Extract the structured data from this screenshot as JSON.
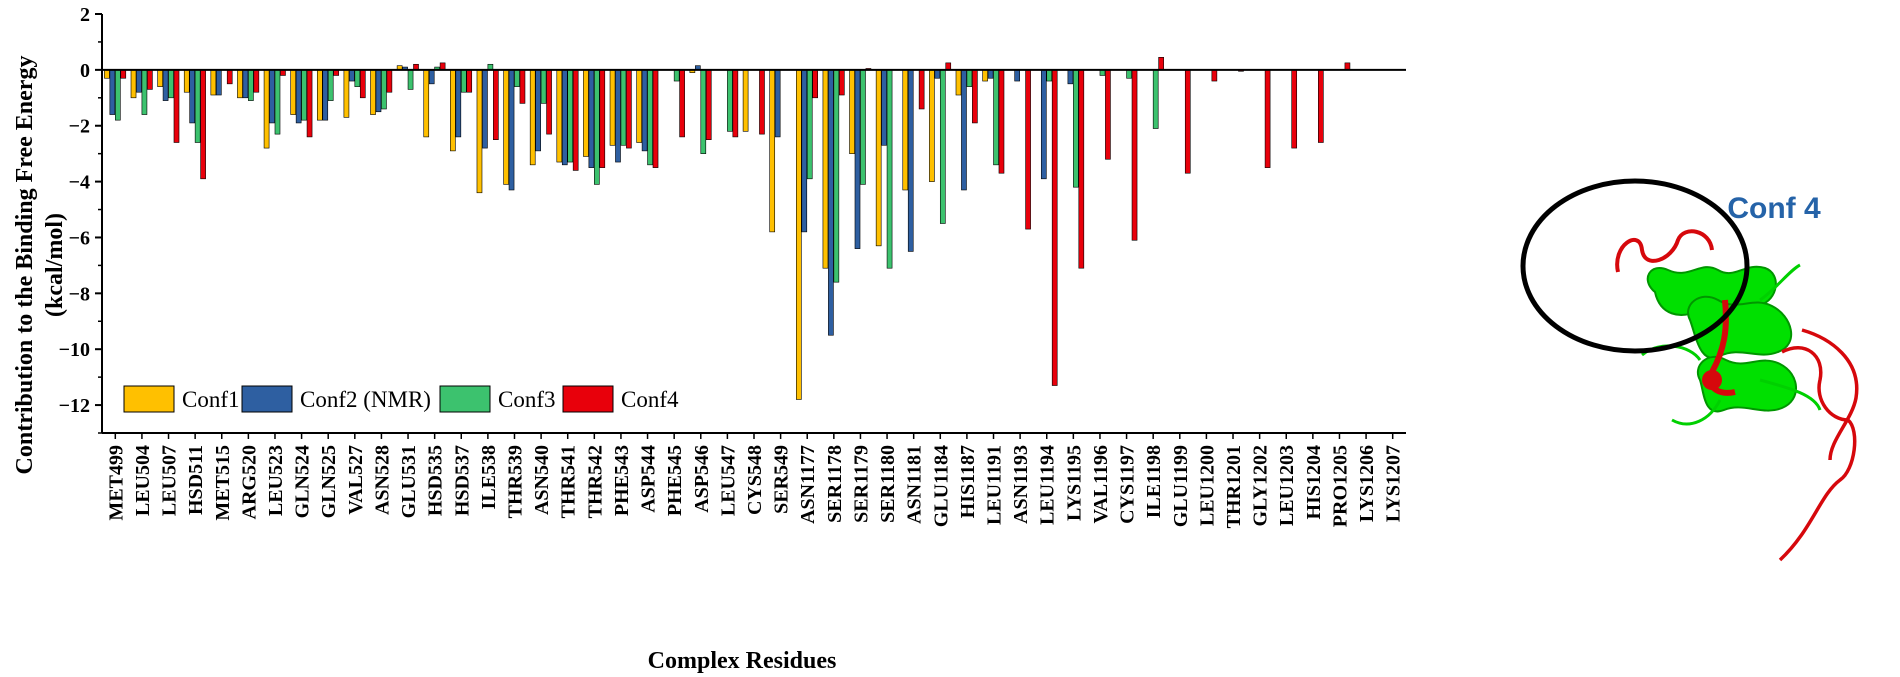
{
  "chart_data": {
    "type": "bar",
    "ylabel_line1": "Contribution to the Binding Free Energy",
    "ylabel_line2": "(kcal/mol)",
    "xlabel": "Complex Residues",
    "ylim": [
      -13,
      2
    ],
    "yticks": [
      2,
      0,
      -2,
      -4,
      -6,
      -8,
      -10,
      -12
    ],
    "grid": false,
    "legend_position": "bottom-left",
    "categories": [
      "MET499",
      "LEU504",
      "LEU507",
      "HSD511",
      "MET515",
      "ARG520",
      "LEU523",
      "GLN524",
      "GLN525",
      "VAL527",
      "ASN528",
      "GLU531",
      "HSD535",
      "HSD537",
      "ILE538",
      "THR539",
      "ASN540",
      "THR541",
      "THR542",
      "PHE543",
      "ASP544",
      "PHE545",
      "ASP546",
      "LEU547",
      "CYS548",
      "SER549",
      "ASN1177",
      "SER1178",
      "SER1179",
      "SER1180",
      "ASN1181",
      "GLU1184",
      "HIS1187",
      "LEU1191",
      "ASN1193",
      "LEU1194",
      "LYS1195",
      "VAL1196",
      "CYS1197",
      "ILE1198",
      "GLU1199",
      "LEU1200",
      "THR1201",
      "GLY1202",
      "LEU1203",
      "HIS1204",
      "PRO1205",
      "LYS1206",
      "LYS1207"
    ],
    "series": [
      {
        "name": "Conf1",
        "color": "#FFC000",
        "values": [
          -0.3,
          -1.0,
          -0.6,
          -0.8,
          -0.9,
          -1.0,
          -2.8,
          -1.6,
          -1.8,
          -1.7,
          -1.6,
          0.15,
          -2.4,
          -2.9,
          -4.4,
          -4.1,
          -3.4,
          -3.3,
          -3.1,
          -2.7,
          -2.6,
          0,
          -0.1,
          0,
          -2.2,
          -5.8,
          -11.8,
          -7.1,
          -3.0,
          -6.3,
          -4.3,
          -4.0,
          -0.9,
          -0.4,
          0,
          0,
          0,
          0,
          0,
          0,
          0,
          0,
          0,
          0,
          0,
          0,
          0,
          0,
          0
        ]
      },
      {
        "name": "Conf2 (NMR)",
        "color": "#2E5FA1",
        "values": [
          -1.6,
          -0.8,
          -1.1,
          -1.9,
          -0.9,
          -1.0,
          -1.9,
          -1.9,
          -1.8,
          -0.4,
          -1.5,
          0.1,
          -0.5,
          -2.4,
          -2.8,
          -4.3,
          -2.9,
          -3.4,
          -3.5,
          -3.3,
          -2.9,
          0,
          0.15,
          0,
          0,
          -2.4,
          -5.8,
          -9.5,
          -6.4,
          -2.7,
          -6.5,
          -0.3,
          -4.3,
          -0.3,
          -0.4,
          -3.9,
          -0.5,
          0,
          0,
          0,
          0,
          0,
          0,
          0,
          0,
          0,
          0,
          0,
          0
        ]
      },
      {
        "name": "Conf3",
        "color": "#3CC26E",
        "values": [
          -1.8,
          -1.6,
          -1.0,
          -2.6,
          0,
          -1.1,
          -2.3,
          -1.8,
          -1.1,
          -0.6,
          -1.4,
          -0.7,
          0.1,
          -0.8,
          0.2,
          -0.6,
          -1.2,
          -3.3,
          -4.1,
          -2.7,
          -3.4,
          -0.4,
          -3.0,
          -2.2,
          0,
          0,
          -3.9,
          -7.6,
          -4.1,
          -7.1,
          0,
          -5.5,
          -0.6,
          -3.4,
          0,
          -0.4,
          -4.2,
          -0.2,
          -0.3,
          -2.1,
          0,
          0,
          0,
          0,
          0,
          0,
          0,
          0,
          0
        ]
      },
      {
        "name": "Conf4",
        "color": "#E8000B",
        "values": [
          -0.3,
          -0.7,
          -2.6,
          -3.9,
          -0.5,
          -0.8,
          -0.2,
          -2.4,
          -0.2,
          -1.0,
          -0.8,
          0.2,
          0.25,
          -0.8,
          -2.5,
          -1.2,
          -2.3,
          -3.6,
          -3.5,
          -2.8,
          -3.5,
          -2.4,
          -2.5,
          -2.4,
          -2.3,
          0,
          -1.0,
          -0.9,
          0.05,
          0,
          -1.4,
          0.25,
          -1.9,
          -3.7,
          -5.7,
          -11.3,
          -7.1,
          -3.2,
          -6.1,
          0.45,
          -3.7,
          -0.4,
          -0.05,
          -3.5,
          -2.8,
          -2.6,
          0.25,
          0,
          0
        ]
      }
    ]
  },
  "inset": {
    "label": "Conf 4",
    "image_description": "protein structure ribbon"
  }
}
